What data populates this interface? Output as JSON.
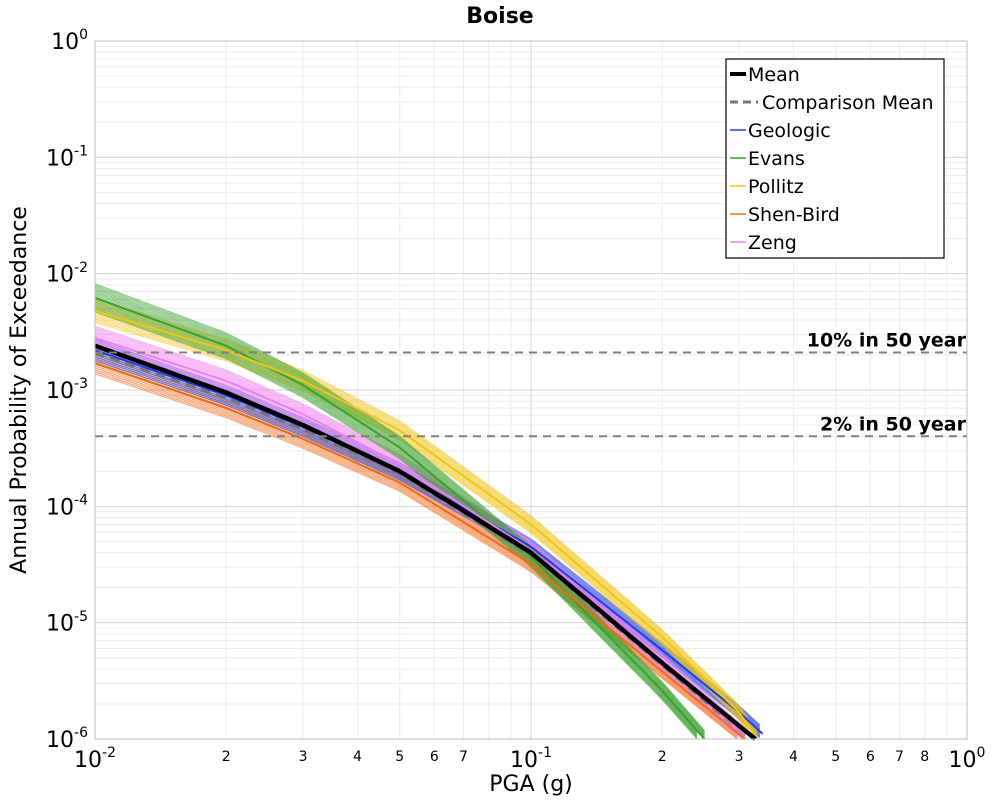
{
  "chart_data": {
    "type": "line",
    "title": "Boise",
    "xlabel": "PGA (g)",
    "ylabel": "Annual Probability of Exceedance",
    "xscale": "log",
    "yscale": "log",
    "xlim": [
      0.01,
      1
    ],
    "ylim": [
      1e-06,
      1
    ],
    "grid": true,
    "legend_position": "top-right",
    "x_ticks": {
      "major": [
        {
          "value": 0.01,
          "base": "10",
          "exp": "-2"
        },
        {
          "value": 0.1,
          "base": "10",
          "exp": "-1"
        },
        {
          "value": 1,
          "base": "10",
          "exp": "0"
        }
      ],
      "minor": [
        {
          "value": 0.02,
          "label": "2"
        },
        {
          "value": 0.03,
          "label": "3"
        },
        {
          "value": 0.04,
          "label": "4"
        },
        {
          "value": 0.05,
          "label": "5"
        },
        {
          "value": 0.06,
          "label": "6"
        },
        {
          "value": 0.07,
          "label": "7"
        },
        {
          "value": 0.2,
          "label": "2"
        },
        {
          "value": 0.3,
          "label": "3"
        },
        {
          "value": 0.4,
          "label": "4"
        },
        {
          "value": 0.5,
          "label": "5"
        },
        {
          "value": 0.6,
          "label": "6"
        },
        {
          "value": 0.7,
          "label": "7"
        },
        {
          "value": 0.8,
          "label": "8"
        }
      ]
    },
    "y_ticks": [
      {
        "value": 1,
        "base": "10",
        "exp": "0"
      },
      {
        "value": 0.1,
        "base": "10",
        "exp": "-1"
      },
      {
        "value": 0.01,
        "base": "10",
        "exp": "-2"
      },
      {
        "value": 0.001,
        "base": "10",
        "exp": "-3"
      },
      {
        "value": 0.0001,
        "base": "10",
        "exp": "-4"
      },
      {
        "value": 1e-05,
        "base": "10",
        "exp": "-5"
      },
      {
        "value": 1e-06,
        "base": "10",
        "exp": "-6"
      }
    ],
    "reference_lines": [
      {
        "label": "10% in 50 year",
        "y": 0.0021
      },
      {
        "label": "2% in 50 year",
        "y": 0.0004
      }
    ],
    "series": [
      {
        "name": "Mean",
        "color": "#000000",
        "style": "solid",
        "width": 4.5,
        "x": [
          0.01,
          0.02,
          0.03,
          0.05,
          0.1,
          0.2,
          0.3,
          0.327
        ],
        "y": [
          0.0024,
          0.00095,
          0.0005,
          0.0002,
          4e-05,
          4.5e-06,
          1.3e-06,
          1e-06
        ]
      },
      {
        "name": "Comparison Mean",
        "color": "#777777",
        "style": "dashed",
        "width": 3,
        "x": [
          0.01,
          0.02,
          0.03,
          0.05,
          0.1,
          0.2,
          0.3,
          0.32
        ],
        "y": [
          0.0021,
          0.00085,
          0.00046,
          0.00019,
          3.8e-05,
          4.3e-06,
          1.2e-06,
          1e-06
        ]
      },
      {
        "name": "Geologic",
        "color": "#1f3fe0",
        "style": "solid",
        "width": 1.5,
        "x": [
          0.01,
          0.02,
          0.03,
          0.05,
          0.1,
          0.2,
          0.3,
          0.35
        ],
        "y": [
          0.0022,
          0.0009,
          0.00048,
          0.0002,
          4.5e-05,
          5.8e-06,
          1.7e-06,
          1e-06
        ]
      },
      {
        "name": "Evans",
        "color": "#3aa02e",
        "style": "solid",
        "width": 1.5,
        "x": [
          0.01,
          0.02,
          0.03,
          0.05,
          0.1,
          0.2,
          0.25
        ],
        "y": [
          0.0062,
          0.0024,
          0.0011,
          0.00032,
          3.7e-05,
          2.6e-06,
          1e-06
        ]
      },
      {
        "name": "Pollitz",
        "color": "#f0c419",
        "style": "solid",
        "width": 1.5,
        "x": [
          0.01,
          0.02,
          0.03,
          0.05,
          0.1,
          0.2,
          0.3,
          0.33
        ],
        "y": [
          0.0048,
          0.0022,
          0.0012,
          0.00045,
          7e-05,
          7.5e-06,
          1.7e-06,
          1e-06
        ]
      },
      {
        "name": "Shen-Bird",
        "color": "#ee6a1a",
        "style": "solid",
        "width": 1.5,
        "x": [
          0.01,
          0.02,
          0.03,
          0.05,
          0.1,
          0.2,
          0.3,
          0.31
        ],
        "y": [
          0.0017,
          0.0007,
          0.00038,
          0.00016,
          3.2e-05,
          3.8e-06,
          1.1e-06,
          1e-06
        ]
      },
      {
        "name": "Zeng",
        "color": "#ee80ee",
        "style": "solid",
        "width": 1.5,
        "x": [
          0.01,
          0.02,
          0.03,
          0.05,
          0.1,
          0.2,
          0.3,
          0.32
        ],
        "y": [
          0.0028,
          0.0012,
          0.00062,
          0.00023,
          4.2e-05,
          4.6e-06,
          1.2e-06,
          1e-06
        ]
      }
    ]
  }
}
